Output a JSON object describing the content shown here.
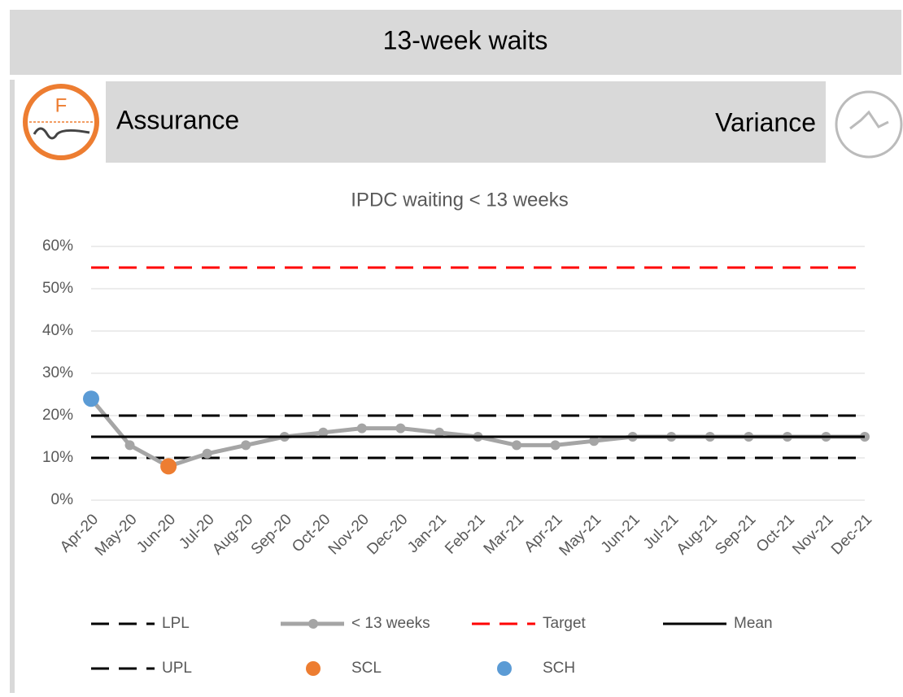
{
  "header": {
    "title": "13-week waits"
  },
  "panel": {
    "assurance_icon": "F",
    "assurance": "Assurance",
    "variance": "Variance"
  },
  "chart_data": {
    "type": "line",
    "title": "IPDC waiting < 13 weeks",
    "categories": [
      "Apr-20",
      "May-20",
      "Jun-20",
      "Jul-20",
      "Aug-20",
      "Sep-20",
      "Oct-20",
      "Nov-20",
      "Dec-20",
      "Jan-21",
      "Feb-21",
      "Mar-21",
      "Apr-21",
      "May-21",
      "Jun-21",
      "Jul-21",
      "Aug-21",
      "Sep-21",
      "Oct-21",
      "Nov-21",
      "Dec-21"
    ],
    "ylim": [
      0,
      60
    ],
    "yticks": [
      {
        "value": 0,
        "label": "0%"
      },
      {
        "value": 10,
        "label": "10%"
      },
      {
        "value": 20,
        "label": "20%"
      },
      {
        "value": 30,
        "label": "30%"
      },
      {
        "value": 40,
        "label": "40%"
      },
      {
        "value": 50,
        "label": "50%"
      },
      {
        "value": 60,
        "label": "60%"
      }
    ],
    "grid": true,
    "legend": "bottom",
    "series": [
      {
        "name": "LPL",
        "color": "#000000",
        "line": "dashed",
        "marker": false,
        "values": [
          10,
          10,
          10,
          10,
          10,
          10,
          10,
          10,
          10,
          10,
          10,
          10,
          10,
          10,
          10,
          10,
          10,
          10,
          10,
          10,
          10
        ]
      },
      {
        "name": "< 13 weeks",
        "color": "#a5a5a5",
        "line": "solid",
        "marker": true,
        "values": [
          24,
          13,
          8,
          11,
          13,
          15,
          16,
          17,
          17,
          16,
          15,
          13,
          13,
          14,
          15,
          15,
          15,
          15,
          15,
          15,
          15
        ]
      },
      {
        "name": "Target",
        "color": "#ff0000",
        "line": "dashed",
        "marker": false,
        "values": [
          55,
          55,
          55,
          55,
          55,
          55,
          55,
          55,
          55,
          55,
          55,
          55,
          55,
          55,
          55,
          55,
          55,
          55,
          55,
          55,
          55
        ]
      },
      {
        "name": "Mean",
        "color": "#000000",
        "line": "solid",
        "marker": false,
        "values": [
          15,
          15,
          15,
          15,
          15,
          15,
          15,
          15,
          15,
          15,
          15,
          15,
          15,
          15,
          15,
          15,
          15,
          15,
          15,
          15,
          15
        ]
      },
      {
        "name": "UPL",
        "color": "#000000",
        "line": "dashed",
        "marker": false,
        "values": [
          20,
          20,
          20,
          20,
          20,
          20,
          20,
          20,
          20,
          20,
          20,
          20,
          20,
          20,
          20,
          20,
          20,
          20,
          20,
          20,
          20
        ]
      },
      {
        "name": "SCL",
        "color": "#ed7d31",
        "line": "none",
        "marker": true,
        "values": [
          null,
          null,
          8,
          null,
          null,
          null,
          null,
          null,
          null,
          null,
          null,
          null,
          null,
          null,
          null,
          null,
          null,
          null,
          null,
          null,
          null
        ]
      },
      {
        "name": "SCH",
        "color": "#5b9bd5",
        "line": "none",
        "marker": true,
        "values": [
          24,
          null,
          null,
          null,
          null,
          null,
          null,
          null,
          null,
          null,
          null,
          null,
          null,
          null,
          null,
          null,
          null,
          null,
          null,
          null,
          null
        ]
      }
    ]
  }
}
